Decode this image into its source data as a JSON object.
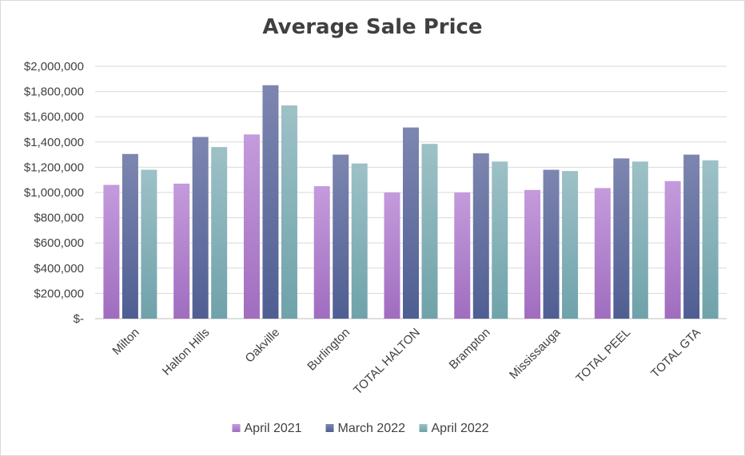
{
  "chart_data": {
    "type": "bar",
    "title": "Average Sale Price",
    "categories": [
      "Milton",
      "Halton Hills",
      "Oakville",
      "Burlington",
      "TOTAL HALTON",
      "Brampton",
      "Mississauga",
      "TOTAL PEEL",
      "TOTAL GTA"
    ],
    "series": [
      {
        "name": "April 2021",
        "values": [
          1060000,
          1070000,
          1460000,
          1050000,
          1000000,
          1000000,
          1020000,
          1035000,
          1090000
        ]
      },
      {
        "name": "March 2022",
        "values": [
          1305000,
          1440000,
          1850000,
          1300000,
          1515000,
          1310000,
          1180000,
          1270000,
          1300000
        ]
      },
      {
        "name": "April 2022",
        "values": [
          1180000,
          1360000,
          1690000,
          1230000,
          1385000,
          1245000,
          1170000,
          1245000,
          1255000
        ]
      }
    ],
    "ylim": [
      0,
      2000000
    ],
    "yticks": [
      {
        "value": 0,
        "label": "$-"
      },
      {
        "value": 200000,
        "label": "$200,000"
      },
      {
        "value": 400000,
        "label": "$400,000"
      },
      {
        "value": 600000,
        "label": "$600,000"
      },
      {
        "value": 800000,
        "label": "$800,000"
      },
      {
        "value": 1000000,
        "label": "$1,000,000"
      },
      {
        "value": 1200000,
        "label": "$1,200,000"
      },
      {
        "value": 1400000,
        "label": "$1,400,000"
      },
      {
        "value": 1600000,
        "label": "$1,600,000"
      },
      {
        "value": 1800000,
        "label": "$1,800,000"
      },
      {
        "value": 2000000,
        "label": "$2,000,000"
      }
    ],
    "grid": true,
    "legend_position": "bottom",
    "colors": {
      "April 2021": [
        "#c49bdc",
        "#a06dbf"
      ],
      "March 2022": [
        "#7d86b0",
        "#4f5e92"
      ],
      "April 2022": [
        "#9dc1c7",
        "#6fa2aa"
      ]
    },
    "xlabel": "",
    "ylabel": ""
  }
}
